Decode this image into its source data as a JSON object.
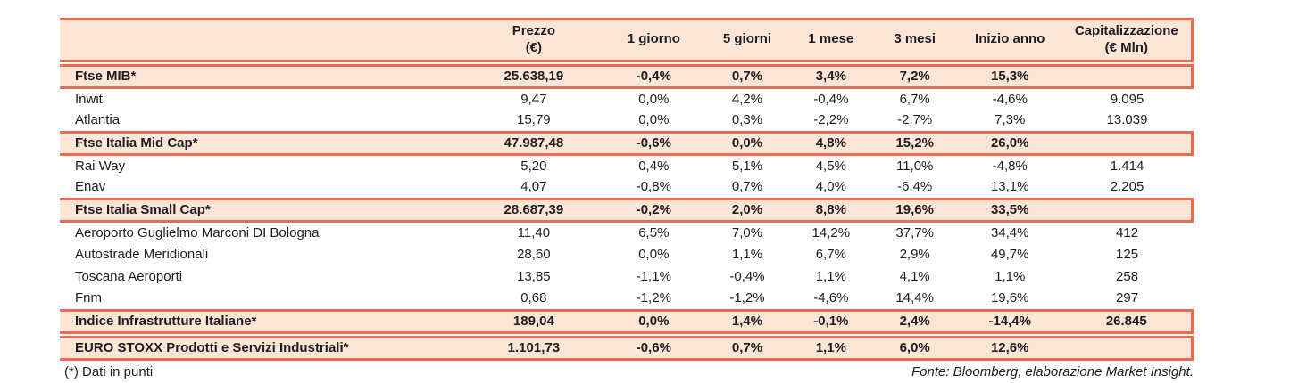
{
  "colors": {
    "accent_border": "#ec6a50",
    "highlight_row_bg": "#fbe6d5",
    "text": "#1e1d24",
    "page_bg": "#ffffff"
  },
  "table": {
    "headers": [
      [
        ""
      ],
      [
        "Prezzo",
        "(€)"
      ],
      [
        "1 giorno"
      ],
      [
        "5 giorni"
      ],
      [
        "1 mese"
      ],
      [
        "3 mesi"
      ],
      [
        "Inizio anno"
      ],
      [
        "Capitalizzazione",
        "(€ Mln)"
      ]
    ],
    "rows": [
      {
        "name": "Ftse MIB*",
        "type": "index",
        "gap_before": true,
        "values": [
          "25.638,19",
          "-0,4%",
          "0,7%",
          "3,4%",
          "7,2%",
          "15,3%",
          ""
        ]
      },
      {
        "name": "Inwit",
        "type": "stock",
        "gap_before": false,
        "values": [
          "9,47",
          "0,0%",
          "4,2%",
          "-0,4%",
          "6,7%",
          "-4,6%",
          "9.095"
        ]
      },
      {
        "name": "Atlantia",
        "type": "stock",
        "gap_before": false,
        "values": [
          "15,79",
          "0,0%",
          "0,3%",
          "-2,2%",
          "-2,7%",
          "7,3%",
          "13.039"
        ]
      },
      {
        "name": "Ftse Italia Mid Cap*",
        "type": "index",
        "gap_before": false,
        "values": [
          "47.987,48",
          "-0,6%",
          "0,0%",
          "4,8%",
          "15,2%",
          "26,0%",
          ""
        ]
      },
      {
        "name": "Rai Way",
        "type": "stock",
        "gap_before": false,
        "values": [
          "5,20",
          "0,4%",
          "5,1%",
          "4,5%",
          "11,0%",
          "-4,8%",
          "1.414"
        ]
      },
      {
        "name": "Enav",
        "type": "stock",
        "gap_before": false,
        "values": [
          "4,07",
          "-0,8%",
          "0,7%",
          "4,0%",
          "-6,4%",
          "13,1%",
          "2.205"
        ]
      },
      {
        "name": "Ftse Italia Small Cap*",
        "type": "index",
        "gap_before": false,
        "values": [
          "28.687,39",
          "-0,2%",
          "2,0%",
          "8,8%",
          "19,6%",
          "33,5%",
          ""
        ]
      },
      {
        "name": "Aeroporto Guglielmo Marconi DI Bologna",
        "type": "stock",
        "gap_before": false,
        "values": [
          "11,40",
          "6,5%",
          "7,0%",
          "14,2%",
          "37,7%",
          "34,4%",
          "412"
        ]
      },
      {
        "name": "Autostrade Meridionali",
        "type": "stock",
        "gap_before": false,
        "values": [
          "28,60",
          "0,0%",
          "1,1%",
          "6,7%",
          "2,9%",
          "49,7%",
          "125"
        ]
      },
      {
        "name": "Toscana Aeroporti",
        "type": "stock",
        "gap_before": false,
        "values": [
          "13,85",
          "-1,1%",
          "-0,4%",
          "1,1%",
          "4,1%",
          "1,1%",
          "258"
        ]
      },
      {
        "name": "Fnm",
        "type": "stock",
        "gap_before": false,
        "values": [
          "0,68",
          "-1,2%",
          "-1,2%",
          "-4,6%",
          "14,4%",
          "19,6%",
          "297"
        ]
      },
      {
        "name": "Indice Infrastrutture Italiane*",
        "type": "index",
        "gap_before": false,
        "values": [
          "189,04",
          "0,0%",
          "1,4%",
          "-0,1%",
          "2,4%",
          "-14,4%",
          "26.845"
        ]
      },
      {
        "name": "EURO STOXX Prodotti e Servizi Industriali*",
        "type": "index",
        "gap_before": true,
        "values": [
          "1.101,73",
          "-0,6%",
          "0,7%",
          "1,1%",
          "6,0%",
          "12,6%",
          ""
        ]
      }
    ]
  },
  "footer": {
    "note": "(*) Dati in punti",
    "source": "Fonte: Bloomberg, elaborazione Market Insight."
  }
}
